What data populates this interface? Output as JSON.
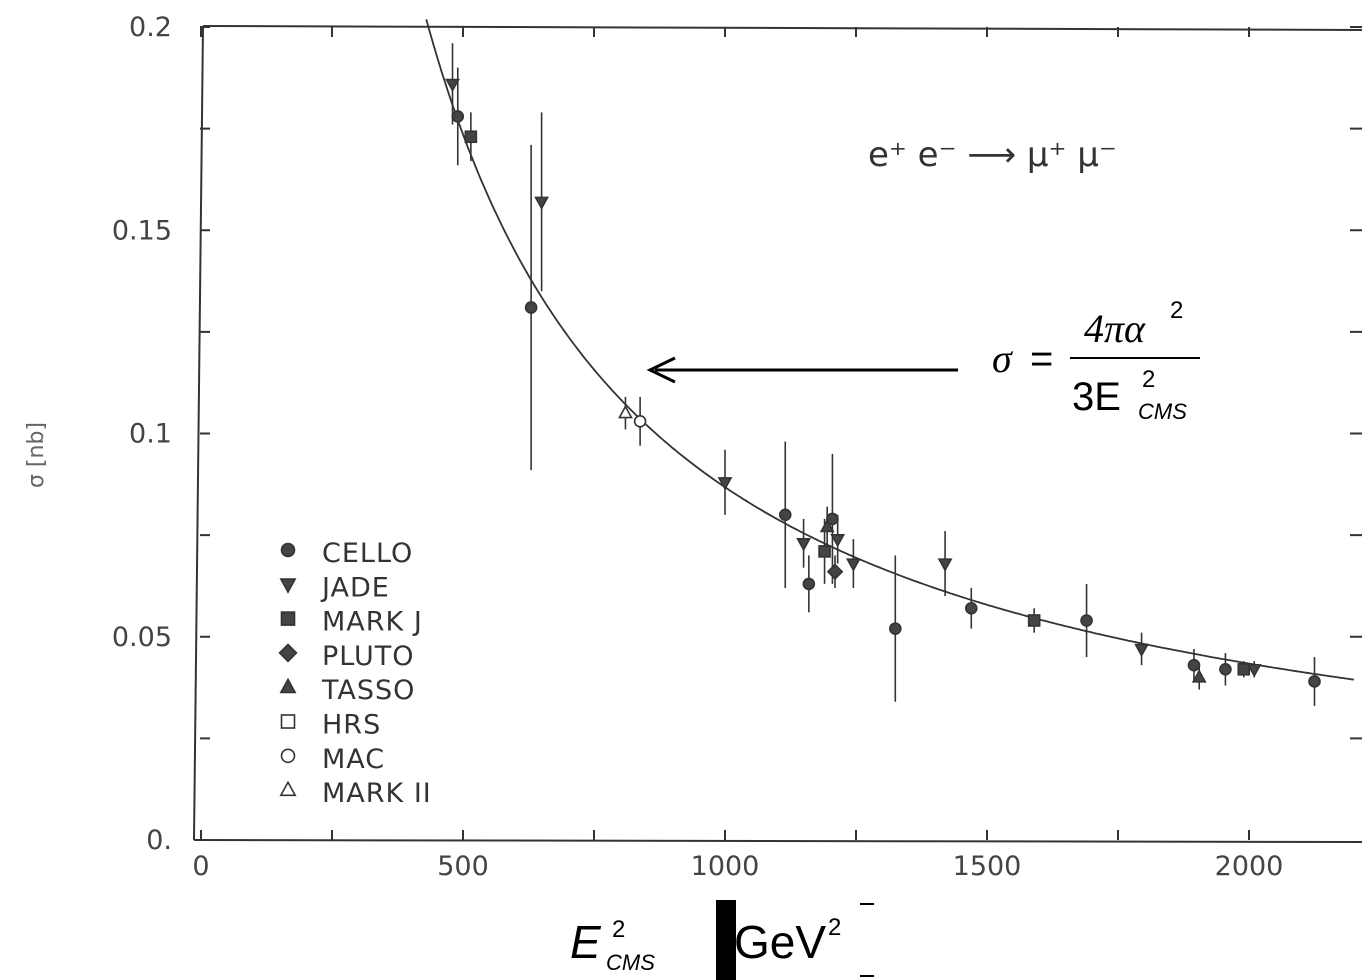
{
  "chart_data": {
    "type": "scatter",
    "title": "",
    "ylabel": "σ [nb]",
    "xlim": [
      0,
      2200
    ],
    "ylim": [
      0,
      0.2
    ],
    "x_ticks": [
      "0",
      "500",
      "1000",
      "1500",
      "2000"
    ],
    "y_ticks": [
      "0.",
      "0.05",
      "0.1",
      "0.15",
      "0.2"
    ],
    "annotation": "e⁺ e⁻ ⟶ μ⁺ μ⁻",
    "formula": {
      "lhs": "σ",
      "eq": "=",
      "num": "4πα",
      "num_exp": "2",
      "den": "3E",
      "den_exp": "2",
      "den_sub": "CMS"
    },
    "xlabel": {
      "main": "E",
      "exp": "2",
      "sub": "CMS",
      "unit": "GeV",
      "unit_exp": "2"
    },
    "legend_placement": "lower-left",
    "legend": [
      {
        "name": "CELLO",
        "marker": "filled-circle"
      },
      {
        "name": "JADE",
        "marker": "filled-triangle-down"
      },
      {
        "name": "MARK J",
        "marker": "filled-square"
      },
      {
        "name": "PLUTO",
        "marker": "filled-diamond"
      },
      {
        "name": "TASSO",
        "marker": "filled-triangle-up"
      },
      {
        "name": "HRS",
        "marker": "open-square"
      },
      {
        "name": "MAC",
        "marker": "open-circle"
      },
      {
        "name": "MARK II",
        "marker": "open-triangle-up"
      }
    ],
    "curve": {
      "label": "σ = 4πα²/3E²CMS",
      "k": 86.8,
      "x_from": 430,
      "x_to": 2200
    },
    "series": [
      {
        "name": "CELLO",
        "points": [
          {
            "x": 490,
            "y": 0.178,
            "err": 0.012
          },
          {
            "x": 630,
            "y": 0.131,
            "err": 0.04
          },
          {
            "x": 1115,
            "y": 0.08,
            "err": 0.018
          },
          {
            "x": 1160,
            "y": 0.063,
            "err": 0.007
          },
          {
            "x": 1205,
            "y": 0.079,
            "err": 0.016
          },
          {
            "x": 1325,
            "y": 0.052,
            "err": 0.018
          },
          {
            "x": 1470,
            "y": 0.057,
            "err": 0.005
          },
          {
            "x": 1690,
            "y": 0.054,
            "err": 0.009
          },
          {
            "x": 1895,
            "y": 0.043,
            "err": 0.004
          },
          {
            "x": 1955,
            "y": 0.042,
            "err": 0.004
          },
          {
            "x": 2125,
            "y": 0.039,
            "err": 0.006
          }
        ]
      },
      {
        "name": "JADE",
        "points": [
          {
            "x": 480,
            "y": 0.186,
            "err": 0.01
          },
          {
            "x": 650,
            "y": 0.157,
            "err": 0.022
          },
          {
            "x": 1000,
            "y": 0.088,
            "err": 0.008
          },
          {
            "x": 1150,
            "y": 0.073,
            "err": 0.006
          },
          {
            "x": 1215,
            "y": 0.074,
            "err": 0.006
          },
          {
            "x": 1245,
            "y": 0.068,
            "err": 0.006
          },
          {
            "x": 1420,
            "y": 0.068,
            "err": 0.008
          },
          {
            "x": 1795,
            "y": 0.047,
            "err": 0.004
          },
          {
            "x": 2010,
            "y": 0.042,
            "err": 0.002
          }
        ]
      },
      {
        "name": "MARK J",
        "points": [
          {
            "x": 515,
            "y": 0.173,
            "err": 0.006
          },
          {
            "x": 1190,
            "y": 0.071,
            "err": 0.008
          },
          {
            "x": 1590,
            "y": 0.054,
            "err": 0.003
          },
          {
            "x": 1990,
            "y": 0.042,
            "err": 0.002
          }
        ]
      },
      {
        "name": "PLUTO",
        "points": [
          {
            "x": 1210,
            "y": 0.066,
            "err": 0.004
          }
        ]
      },
      {
        "name": "TASSO",
        "points": [
          {
            "x": 1195,
            "y": 0.077,
            "err": 0.005
          },
          {
            "x": 1905,
            "y": 0.04,
            "err": 0.003
          }
        ]
      },
      {
        "name": "MAC",
        "points": [
          {
            "x": 838,
            "y": 0.103,
            "err": 0.006
          }
        ]
      },
      {
        "name": "MARK II",
        "points": [
          {
            "x": 810,
            "y": 0.105,
            "err": 0.004
          }
        ]
      }
    ]
  }
}
